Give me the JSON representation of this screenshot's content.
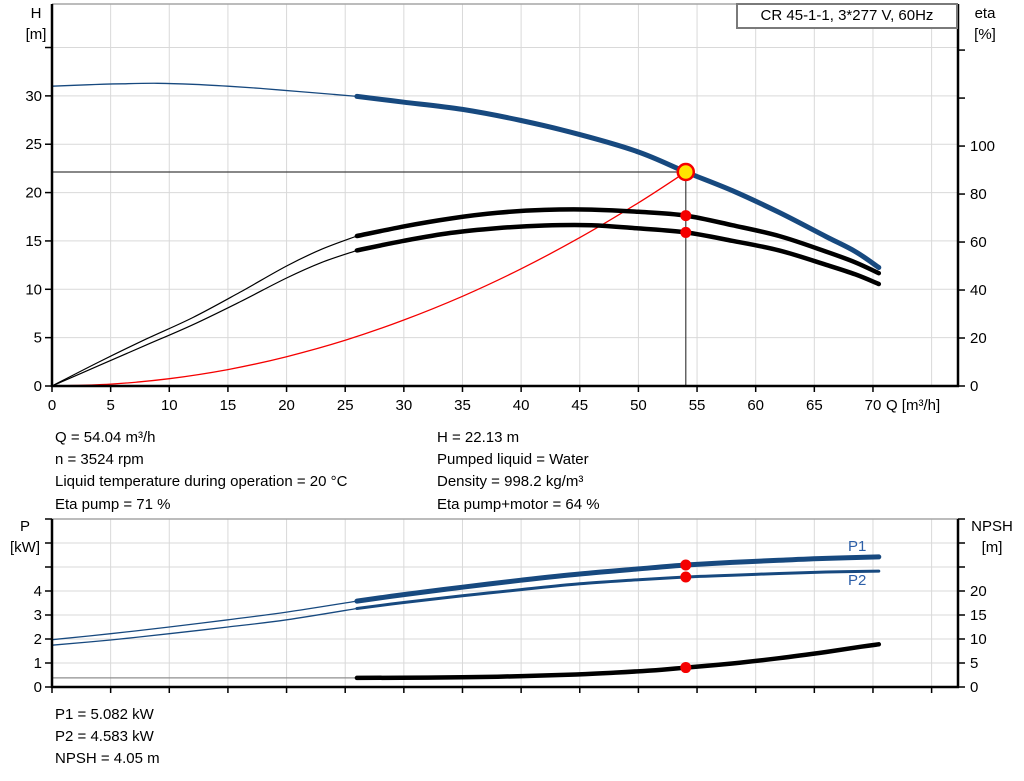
{
  "title_box": "CR 45-1-1, 3*277 V, 60Hz",
  "colors": {
    "curve_blue": "#17497f",
    "label_blue": "#2d5fa8",
    "red": "#f50000",
    "yellow": "#ffe400",
    "black": "#000000",
    "gray_thin": "#8f8f8f",
    "grid": "#d9d9d9",
    "crosshair": "#404040",
    "border_top": "#a6a6a6",
    "title_border": "#7a7a7a"
  },
  "info_left": {
    "l0": "Q = 54.04 m³/h",
    "l1": "n = 3524 rpm",
    "l2": "Liquid temperature during operation = 20 °C",
    "l3": "Eta pump = 71 %"
  },
  "info_right": {
    "l0": "H = 22.13 m",
    "l1": "Pumped liquid = Water",
    "l2": "Density = 998.2 kg/m³",
    "l3": "Eta pump+motor = 64 %"
  },
  "info_bottom": {
    "l0": "P1 = 5.082 kW",
    "l1": "P2 = 4.583 kW",
    "l2": "NPSH = 4.05 m"
  },
  "duty_point": {
    "Q_m3h": 54.04,
    "H_m": 22.13,
    "eta_pump_pct": 71,
    "eta_pump_motor_pct": 64,
    "P1_kW": 5.082,
    "P2_kW": 4.583,
    "NPSH_m": 4.05,
    "n_rpm": 3524
  },
  "chart_data": [
    {
      "type": "line",
      "title": "CR 45-1-1, 3*277 V, 60Hz",
      "xlabel": "Q [m³/h]",
      "x_axis": {
        "min": 0,
        "max": 77.25,
        "ticks": [
          0,
          5,
          10,
          15,
          20,
          25,
          30,
          35,
          40,
          45,
          50,
          55,
          60,
          65,
          70
        ],
        "grid": [
          5,
          10,
          15,
          20,
          25,
          30,
          35,
          40,
          45,
          50,
          55,
          60,
          65,
          70,
          75
        ],
        "labels_shown": true
      },
      "left_axis": {
        "l1": "H",
        "l2": "[m]",
        "min": 0,
        "max": 39.5,
        "ticks": [
          0,
          5,
          10,
          15,
          20,
          25,
          30,
          35
        ],
        "labeled": [
          0,
          5,
          10,
          15,
          20,
          25,
          30
        ],
        "grid": [
          5,
          10,
          15,
          20,
          25,
          30,
          35
        ]
      },
      "right_axis": {
        "l1": "eta",
        "l2": "[%]",
        "min": 0,
        "max": 159.2,
        "ticks": [
          0,
          20,
          40,
          60,
          80,
          100,
          120,
          140
        ],
        "labeled": [
          0,
          20,
          40,
          60,
          80,
          100
        ]
      },
      "crosshair": {
        "q": 54.04,
        "v": 22.13
      },
      "series": [
        {
          "name": "system-curve",
          "axis": "left",
          "color": "red",
          "w": 1.3,
          "points": [
            [
              0,
              0
            ],
            [
              5,
              0.19
            ],
            [
              10,
              0.76
            ],
            [
              15,
              1.7
            ],
            [
              20,
              3.03
            ],
            [
              25,
              4.73
            ],
            [
              30,
              6.82
            ],
            [
              35,
              9.28
            ],
            [
              40,
              12.12
            ],
            [
              45,
              15.34
            ],
            [
              50,
              18.94
            ],
            [
              54.04,
              22.13
            ]
          ]
        },
        {
          "name": "eta-pump-curve-thin",
          "axis": "right",
          "color": "black",
          "w": 1.2,
          "points": [
            [
              0,
              0
            ],
            [
              4,
              10
            ],
            [
              8,
              19.5
            ],
            [
              12,
              28.5
            ],
            [
              16,
              39
            ],
            [
              20,
              50
            ],
            [
              23,
              57
            ],
            [
              26,
              62.5
            ]
          ]
        },
        {
          "name": "eta-pump-motor-curve-thin",
          "axis": "right",
          "color": "black",
          "w": 1.2,
          "points": [
            [
              0,
              0
            ],
            [
              4,
              8.5
            ],
            [
              8,
              17
            ],
            [
              12,
              25.5
            ],
            [
              16,
              35
            ],
            [
              20,
              45
            ],
            [
              23,
              51.5
            ],
            [
              26,
              56.5
            ]
          ]
        },
        {
          "name": "eta-pump-curve",
          "axis": "right",
          "color": "black",
          "w": 4.5,
          "points": [
            [
              26,
              62.5
            ],
            [
              30,
              66.5
            ],
            [
              34,
              69.8
            ],
            [
              38,
              72.2
            ],
            [
              42,
              73.4
            ],
            [
              46,
              73.5
            ],
            [
              50,
              72.6
            ],
            [
              54.04,
              71
            ],
            [
              58,
              67
            ],
            [
              62,
              62.5
            ],
            [
              66,
              56
            ],
            [
              68.5,
              51.5
            ],
            [
              70.5,
              47
            ]
          ]
        },
        {
          "name": "eta-pump-motor-curve",
          "axis": "right",
          "color": "black",
          "w": 4.5,
          "points": [
            [
              26,
              56.5
            ],
            [
              30,
              60.5
            ],
            [
              34,
              63.8
            ],
            [
              38,
              65.8
            ],
            [
              42,
              66.9
            ],
            [
              46,
              67
            ],
            [
              50,
              65.7
            ],
            [
              54.04,
              64
            ],
            [
              58,
              60.5
            ],
            [
              62,
              56.5
            ],
            [
              66,
              50.5
            ],
            [
              68.5,
              46.5
            ],
            [
              70.5,
              42.5
            ]
          ]
        },
        {
          "name": "qh-curve-thin",
          "axis": "left",
          "color": "curve_blue",
          "w": 1.3,
          "points": [
            [
              0,
              31.0
            ],
            [
              3,
              31.15
            ],
            [
              6,
              31.25
            ],
            [
              9,
              31.3
            ],
            [
              12,
              31.2
            ],
            [
              15,
              31.0
            ],
            [
              18,
              30.75
            ],
            [
              21,
              30.45
            ],
            [
              24,
              30.15
            ],
            [
              26,
              29.95
            ]
          ]
        },
        {
          "name": "qh-curve",
          "axis": "left",
          "color": "curve_blue",
          "w": 5,
          "points": [
            [
              26,
              29.95
            ],
            [
              30,
              29.35
            ],
            [
              35,
              28.6
            ],
            [
              40,
              27.45
            ],
            [
              45,
              26.0
            ],
            [
              50,
              24.2
            ],
            [
              54.04,
              22.13
            ],
            [
              58,
              20.2
            ],
            [
              62,
              17.95
            ],
            [
              66,
              15.45
            ],
            [
              68.5,
              13.9
            ],
            [
              70.5,
              12.25
            ]
          ]
        }
      ],
      "markers": [
        {
          "name": "eta-pump-duty-dot",
          "type": "dot",
          "axis": "right",
          "q": 54.04,
          "v": 71
        },
        {
          "name": "eta-pump-motor-duty-dot",
          "type": "dot",
          "axis": "right",
          "q": 54.04,
          "v": 64
        },
        {
          "name": "duty-point",
          "type": "duty",
          "axis": "left",
          "q": 54.04,
          "v": 22.13
        }
      ]
    },
    {
      "type": "line",
      "xlabel": "",
      "x_axis": {
        "min": 0,
        "max": 77.25,
        "ticks": [
          0,
          5,
          10,
          15,
          20,
          25,
          30,
          35,
          40,
          45,
          50,
          55,
          60,
          65,
          70,
          75
        ],
        "grid": [
          5,
          10,
          15,
          20,
          25,
          30,
          35,
          40,
          45,
          50,
          55,
          60,
          65,
          70,
          75
        ],
        "labels_shown": false
      },
      "left_axis": {
        "l1": "P",
        "l2": "[kW]",
        "min": 0,
        "max": 7,
        "ticks": [
          0,
          1,
          2,
          3,
          4,
          5,
          6,
          7
        ],
        "labeled": [
          0,
          1,
          2,
          3,
          4
        ],
        "grid": [
          1,
          2,
          3,
          4,
          5,
          6
        ]
      },
      "right_axis": {
        "l1": "NPSH",
        "l2": "[m]",
        "min": 0,
        "max": 35,
        "ticks": [
          0,
          5,
          10,
          15,
          20,
          25,
          30,
          35
        ],
        "labeled": [
          0,
          5,
          10,
          15,
          20
        ]
      },
      "p1_label": "P1",
      "p2_label": "P2",
      "series": [
        {
          "name": "npsh-curve-thin",
          "axis": "right",
          "color": "gray_thin",
          "w": 1.3,
          "points": [
            [
              0,
              1.9
            ],
            [
              10,
              1.9
            ],
            [
              20,
              1.9
            ],
            [
              26,
              1.9
            ]
          ]
        },
        {
          "name": "npsh-curve",
          "axis": "right",
          "color": "black",
          "w": 4.5,
          "points": [
            [
              26,
              1.9
            ],
            [
              32,
              1.95
            ],
            [
              38,
              2.15
            ],
            [
              44,
              2.55
            ],
            [
              48,
              3.0
            ],
            [
              52,
              3.6
            ],
            [
              54.04,
              4.05
            ],
            [
              58,
              4.9
            ],
            [
              62,
              6.0
            ],
            [
              66,
              7.3
            ],
            [
              69,
              8.4
            ],
            [
              70.5,
              8.9
            ]
          ]
        },
        {
          "name": "p2-curve-thin",
          "axis": "left",
          "color": "curve_blue",
          "w": 1.3,
          "points": [
            [
              0,
              1.74
            ],
            [
              5,
              1.96
            ],
            [
              10,
              2.22
            ],
            [
              15,
              2.5
            ],
            [
              20,
              2.8
            ],
            [
              26,
              3.27
            ]
          ]
        },
        {
          "name": "p2-curve",
          "axis": "left",
          "color": "curve_blue",
          "w": 3,
          "points": [
            [
              26,
              3.27
            ],
            [
              30,
              3.52
            ],
            [
              35,
              3.8
            ],
            [
              40,
              4.06
            ],
            [
              45,
              4.3
            ],
            [
              50,
              4.47
            ],
            [
              54.04,
              4.583
            ],
            [
              58,
              4.66
            ],
            [
              62,
              4.73
            ],
            [
              66,
              4.79
            ],
            [
              70.5,
              4.83
            ]
          ]
        },
        {
          "name": "p1-curve-thin",
          "axis": "left",
          "color": "curve_blue",
          "w": 1.3,
          "points": [
            [
              0,
              1.97
            ],
            [
              5,
              2.22
            ],
            [
              10,
              2.5
            ],
            [
              15,
              2.8
            ],
            [
              20,
              3.12
            ],
            [
              26,
              3.58
            ]
          ]
        },
        {
          "name": "p1-curve",
          "axis": "left",
          "color": "curve_blue",
          "w": 5,
          "points": [
            [
              26,
              3.58
            ],
            [
              30,
              3.85
            ],
            [
              35,
              4.16
            ],
            [
              40,
              4.45
            ],
            [
              45,
              4.71
            ],
            [
              50,
              4.92
            ],
            [
              54.04,
              5.082
            ],
            [
              58,
              5.19
            ],
            [
              62,
              5.28
            ],
            [
              66,
              5.36
            ],
            [
              70.5,
              5.42
            ]
          ]
        }
      ],
      "markers": [
        {
          "name": "p1-duty-dot",
          "type": "dot",
          "axis": "left",
          "q": 54.04,
          "v": 5.082
        },
        {
          "name": "p2-duty-dot",
          "type": "dot",
          "axis": "left",
          "q": 54.04,
          "v": 4.583
        },
        {
          "name": "npsh-duty-dot",
          "type": "dot",
          "axis": "right",
          "q": 54.04,
          "v": 4.05
        }
      ]
    }
  ]
}
